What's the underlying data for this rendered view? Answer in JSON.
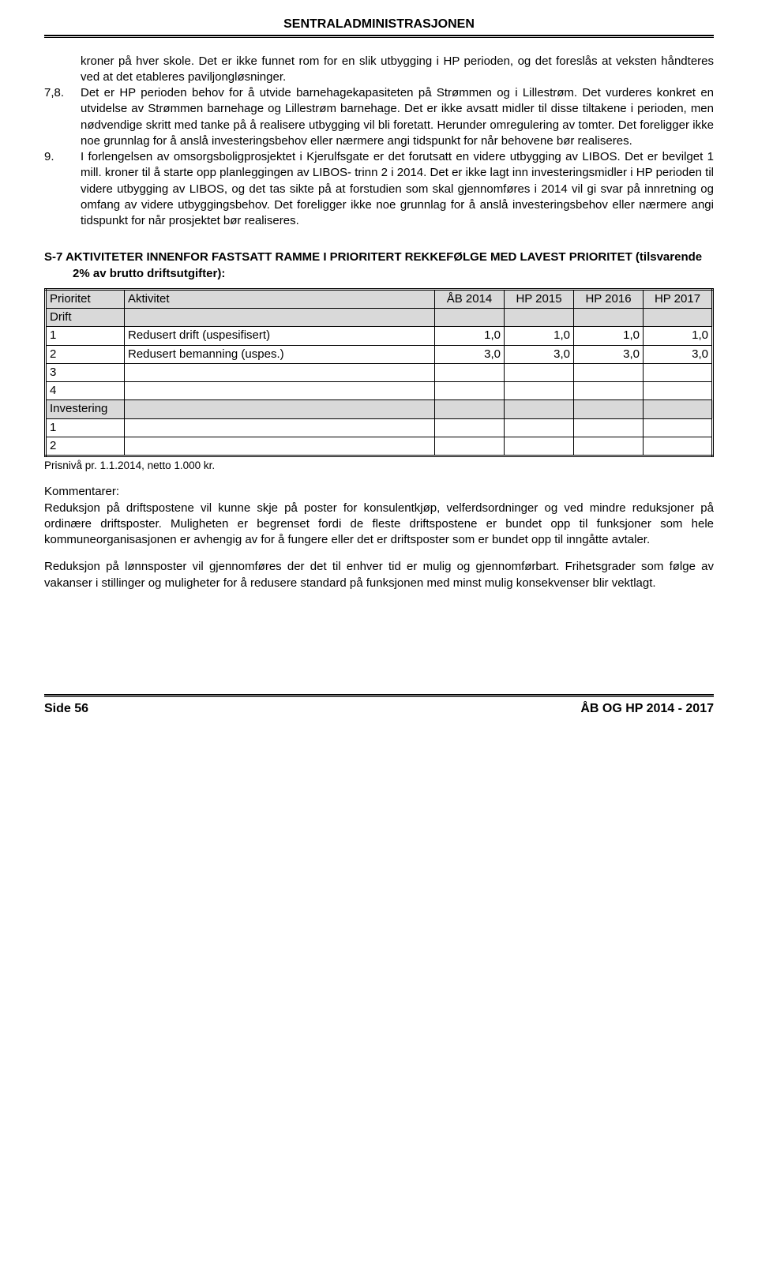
{
  "header": {
    "title": "SENTRALADMINISTRASJONEN"
  },
  "list": {
    "text_lead": "kroner på hver skole. Det er ikke funnet rom for en slik utbygging i HP perioden, og det foreslås at veksten håndteres ved at det etableres paviljongløsninger.",
    "item78_num": "7,8.",
    "item78_text": "Det er HP perioden behov for å utvide barnehagekapasiteten på Strømmen og i Lillestrøm. Det vurderes konkret en utvidelse av Strømmen barnehage og Lillestrøm barnehage. Det er ikke avsatt midler til disse tiltakene i perioden, men nødvendige skritt med tanke på å realisere utbygging vil bli foretatt. Herunder omregulering av tomter. Det foreligger ikke noe grunnlag for å anslå investeringsbehov eller nærmere angi tidspunkt for når behovene bør realiseres.",
    "item9_num": "9.",
    "item9_text": "I forlengelsen av omsorgsboligprosjektet i Kjerulfsgate er det forutsatt en videre utbygging av LIBOS. Det er bevilget 1 mill. kroner til å starte opp planleggingen av LIBOS- trinn 2 i 2014. Det er ikke lagt inn investeringsmidler i HP perioden til videre utbygging av LIBOS, og det tas sikte på at forstudien som skal gjennomføres i 2014 vil gi svar på innretning og omfang av videre utbyggingsbehov. Det foreligger ikke noe grunnlag for å anslå investeringsbehov eller nærmere angi tidspunkt for når prosjektet bør realiseres."
  },
  "section_heading": "S-7 AKTIVITETER INNENFOR FASTSATT RAMME I PRIORITERT REKKEFØLGE MED LAVEST PRIORITET (tilsvarende 2% av brutto driftsutgifter):",
  "table": {
    "headers": [
      "Prioritet",
      "Aktivitet",
      "ÅB 2014",
      "HP 2015",
      "HP 2016",
      "HP 2017"
    ],
    "section_drift": "Drift",
    "rows_drift": [
      {
        "p": "1",
        "a": "Redusert drift (uspesifisert)",
        "v": [
          "1,0",
          "1,0",
          "1,0",
          "1,0"
        ]
      },
      {
        "p": "2",
        "a": "Redusert bemanning (uspes.)",
        "v": [
          "3,0",
          "3,0",
          "3,0",
          "3,0"
        ]
      },
      {
        "p": "3",
        "a": "",
        "v": [
          "",
          "",
          "",
          ""
        ]
      },
      {
        "p": "4",
        "a": "",
        "v": [
          "",
          "",
          "",
          ""
        ]
      }
    ],
    "section_invest": "Investering",
    "rows_invest": [
      {
        "p": "1",
        "a": "",
        "v": [
          "",
          "",
          "",
          ""
        ]
      },
      {
        "p": "2",
        "a": "",
        "v": [
          "",
          "",
          "",
          ""
        ]
      }
    ],
    "note": "Prisnivå pr. 1.1.2014, netto 1.000 kr."
  },
  "komment": {
    "title": "Kommentarer:",
    "p1": "Reduksjon på driftspostene vil kunne skje på poster for konsulentkjøp, velferdsordninger og ved mindre reduksjoner på ordinære driftsposter. Muligheten er begrenset fordi de fleste driftspostene er bundet opp til funksjoner som hele kommuneorganisasjonen er avhengig av for å fungere eller det er driftsposter som er bundet opp til inngåtte avtaler.",
    "p2": "Reduksjon på lønnsposter vil gjennomføres der det til enhver tid er mulig og gjennomførbart. Frihetsgrader som følge av vakanser i stillinger og muligheter for å redusere standard på funksjonen med minst mulig konsekvenser blir vektlagt."
  },
  "footer": {
    "left": "Side 56",
    "right": "ÅB OG HP 2014 - 2017"
  }
}
